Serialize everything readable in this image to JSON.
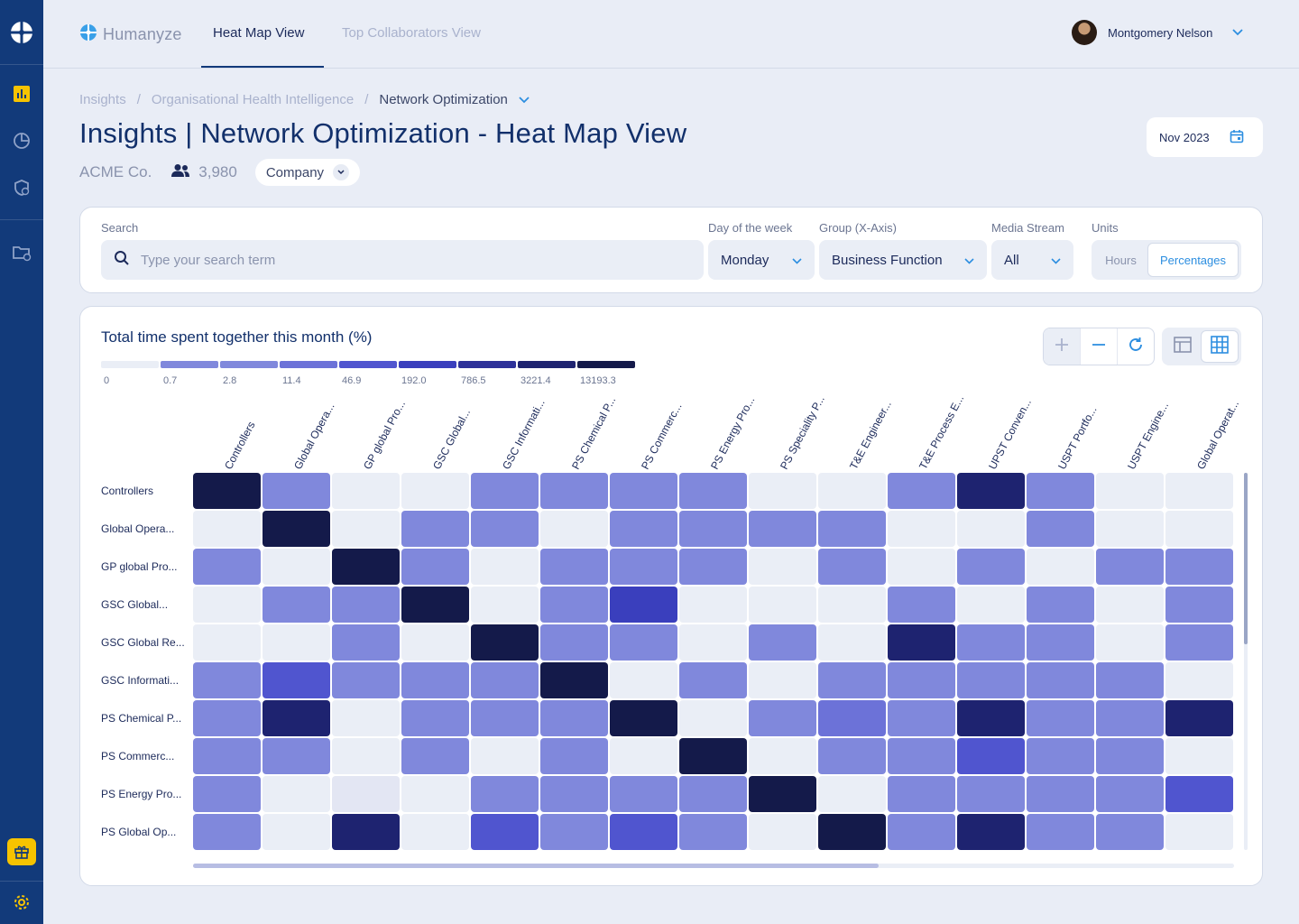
{
  "app": {
    "brand": "Humanyze"
  },
  "nav": {
    "tabs": [
      {
        "label": "Heat Map View",
        "active": true
      },
      {
        "label": "Top Collaborators View",
        "active": false
      }
    ]
  },
  "sidebar": {
    "items": [
      {
        "icon": "bar-chart-icon",
        "active": true
      },
      {
        "icon": "pie-chart-icon"
      },
      {
        "icon": "shield-lock-icon"
      },
      {
        "icon": "folder-info-icon"
      }
    ],
    "bottom": [
      {
        "icon": "gift-icon"
      },
      {
        "icon": "gear-icon"
      }
    ]
  },
  "user": {
    "name": "Montgomery Nelson"
  },
  "breadcrumb": {
    "items": [
      "Insights",
      "Organisational Health Intelligence",
      "Network Optimization"
    ]
  },
  "header": {
    "title": "Insights | Network Optimization - Heat Map View",
    "company": "ACME Co.",
    "headcount": "3,980",
    "scope": "Company",
    "date": "Nov 2023"
  },
  "filters": {
    "search_label": "Search",
    "search_placeholder": "Type your search term",
    "day_label": "Day of the week",
    "day_value": "Monday",
    "group_label": "Group (X-Axis)",
    "group_value": "Business Function",
    "media_label": "Media Stream",
    "media_value": "All",
    "units_label": "Units",
    "units_options": [
      "Hours",
      "Percentages"
    ],
    "units_selected": "Percentages"
  },
  "colors": {
    "accent": "#2c8ee0",
    "brand_dark": "#123a7a",
    "scale": [
      "#eaeef6",
      "#8088dc",
      "#8088dc",
      "#6c72d8",
      "#5055cf",
      "#3a3fbd",
      "#2d3199",
      "#1e2370",
      "#141a4a"
    ]
  },
  "chart_data": {
    "type": "heatmap",
    "title": "Total time spent together this month (%)",
    "legend_thresholds": [
      "0",
      "0.7",
      "2.8",
      "11.4",
      "46.9",
      "192.0",
      "786.5",
      "3221.4",
      "13193.3"
    ],
    "columns": [
      "Controllers",
      "Global Opera...",
      "GP global Pro...",
      "GSC Global...",
      "GSC Informati...",
      "PS Chemical P...",
      "PS Commerc...",
      "PS Energy Pro...",
      "PS Speciality P...",
      "T&E Engineer...",
      "T&E Process E...",
      "UPST Conven...",
      "USPT Portfo...",
      "USPT Engine...",
      "Global Operat..."
    ],
    "rows": [
      "Controllers",
      "Global Opera...",
      "GP global Pro...",
      "GSC Global...",
      "GSC Global Re...",
      "GSC Informati...",
      "PS Chemical P...",
      "PS Commerc...",
      "PS Energy Pro...",
      "PS Global Op..."
    ],
    "levels": [
      [
        8,
        2,
        0,
        0,
        2,
        2,
        2,
        2,
        0,
        0,
        2,
        7,
        2,
        0,
        0
      ],
      [
        0,
        8,
        0,
        2,
        2,
        0,
        2,
        2,
        2,
        2,
        0,
        0,
        2,
        0,
        0
      ],
      [
        2,
        0,
        8,
        2,
        0,
        2,
        2,
        2,
        0,
        2,
        0,
        2,
        0,
        2,
        2
      ],
      [
        0,
        2,
        2,
        8,
        0,
        2,
        5,
        0,
        0,
        0,
        2,
        0,
        2,
        0,
        2
      ],
      [
        0,
        0,
        2,
        0,
        8,
        2,
        2,
        0,
        2,
        0,
        7,
        2,
        2,
        0,
        2
      ],
      [
        2,
        4,
        2,
        2,
        2,
        8,
        0,
        2,
        0,
        2,
        2,
        2,
        2,
        2,
        0
      ],
      [
        2,
        7,
        0,
        2,
        2,
        2,
        8,
        0,
        2,
        3,
        2,
        7,
        2,
        2,
        7
      ],
      [
        2,
        2,
        0,
        2,
        0,
        2,
        0,
        8,
        0,
        2,
        2,
        4,
        2,
        2,
        0
      ],
      [
        2,
        0,
        1,
        0,
        2,
        2,
        2,
        2,
        8,
        0,
        2,
        2,
        2,
        2,
        4
      ],
      [
        2,
        0,
        7,
        0,
        4,
        2,
        4,
        2,
        0,
        8,
        2,
        7,
        2,
        2,
        0
      ]
    ]
  }
}
